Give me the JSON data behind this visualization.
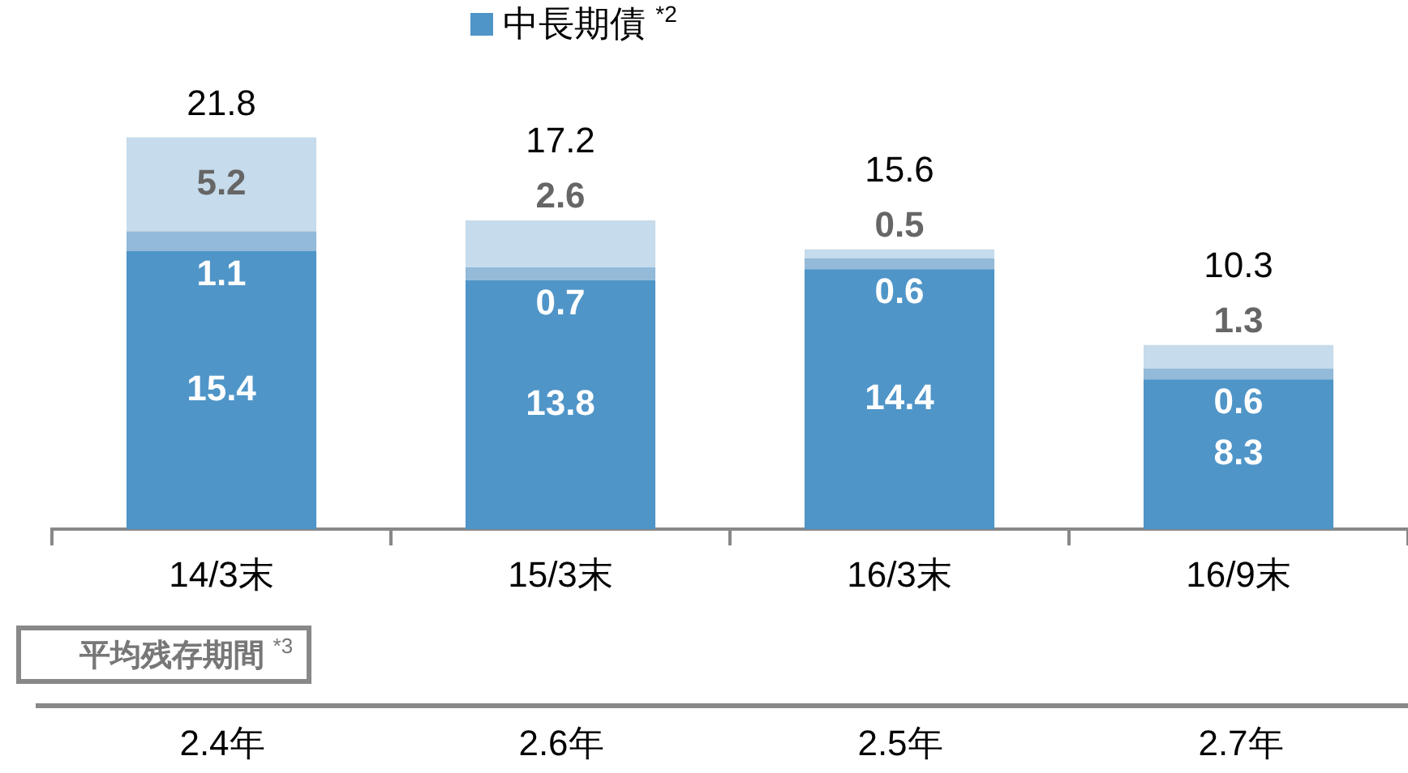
{
  "chart_data": {
    "type": "bar",
    "stacked": true,
    "categories": [
      "14/3末",
      "15/3末",
      "16/3末",
      "16/9末"
    ],
    "series": [
      {
        "name": "中長期債 $^{*2}$",
        "color": "#4f95c8",
        "values": [
          15.4,
          13.8,
          14.4,
          8.3
        ]
      },
      {
        "color": "#93bad8",
        "values": [
          1.1,
          0.7,
          0.6,
          0.6
        ]
      },
      {
        "color": "#c6dbeb",
        "values": [
          5.2,
          2.6,
          0.5,
          1.3
        ]
      }
    ],
    "totals": [
      "21.8",
      "17.2",
      "15.6",
      "10.3"
    ],
    "data_labels": true,
    "grid": false,
    "legend": "top",
    "tick_labels": "x",
    "annotations": [
      "平均残存期間 $^{*3}$",
      "2.4年",
      "2.6年",
      "2.5年",
      "2.7年"
    ]
  }
}
